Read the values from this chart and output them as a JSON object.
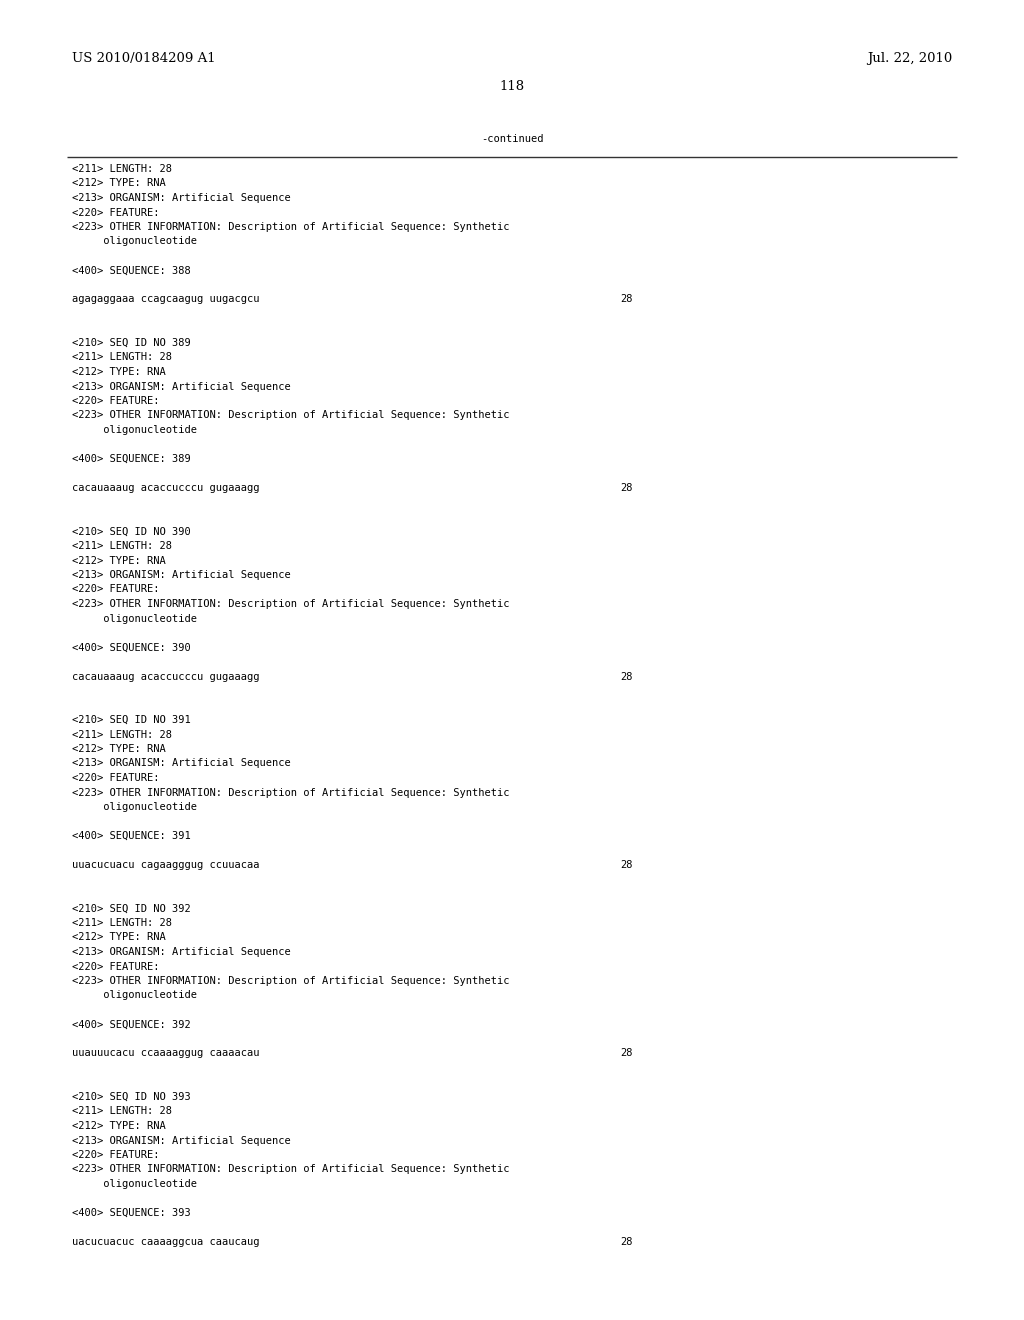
{
  "page_left": "US 2010/0184209 A1",
  "page_right": "Jul. 22, 2010",
  "page_number": "118",
  "continued_label": "-continued",
  "bg_color": "#ffffff",
  "text_color": "#000000",
  "font_size_header": 9.5,
  "font_size_body": 7.5,
  "content": [
    {
      "text": "<211> LENGTH: 28",
      "type": "meta"
    },
    {
      "text": "<212> TYPE: RNA",
      "type": "meta"
    },
    {
      "text": "<213> ORGANISM: Artificial Sequence",
      "type": "meta"
    },
    {
      "text": "<220> FEATURE:",
      "type": "meta"
    },
    {
      "text": "<223> OTHER INFORMATION: Description of Artificial Sequence: Synthetic",
      "type": "meta"
    },
    {
      "text": "     oligonucleotide",
      "type": "meta"
    },
    {
      "text": "",
      "type": "blank"
    },
    {
      "text": "<400> SEQUENCE: 388",
      "type": "meta"
    },
    {
      "text": "",
      "type": "blank"
    },
    {
      "text": "agagaggaaa ccagcaagug uugacgcu",
      "type": "seq",
      "num": "28"
    },
    {
      "text": "",
      "type": "blank"
    },
    {
      "text": "",
      "type": "blank"
    },
    {
      "text": "<210> SEQ ID NO 389",
      "type": "meta"
    },
    {
      "text": "<211> LENGTH: 28",
      "type": "meta"
    },
    {
      "text": "<212> TYPE: RNA",
      "type": "meta"
    },
    {
      "text": "<213> ORGANISM: Artificial Sequence",
      "type": "meta"
    },
    {
      "text": "<220> FEATURE:",
      "type": "meta"
    },
    {
      "text": "<223> OTHER INFORMATION: Description of Artificial Sequence: Synthetic",
      "type": "meta"
    },
    {
      "text": "     oligonucleotide",
      "type": "meta"
    },
    {
      "text": "",
      "type": "blank"
    },
    {
      "text": "<400> SEQUENCE: 389",
      "type": "meta"
    },
    {
      "text": "",
      "type": "blank"
    },
    {
      "text": "cacauaaaug acaccucccu gugaaagg",
      "type": "seq",
      "num": "28"
    },
    {
      "text": "",
      "type": "blank"
    },
    {
      "text": "",
      "type": "blank"
    },
    {
      "text": "<210> SEQ ID NO 390",
      "type": "meta"
    },
    {
      "text": "<211> LENGTH: 28",
      "type": "meta"
    },
    {
      "text": "<212> TYPE: RNA",
      "type": "meta"
    },
    {
      "text": "<213> ORGANISM: Artificial Sequence",
      "type": "meta"
    },
    {
      "text": "<220> FEATURE:",
      "type": "meta"
    },
    {
      "text": "<223> OTHER INFORMATION: Description of Artificial Sequence: Synthetic",
      "type": "meta"
    },
    {
      "text": "     oligonucleotide",
      "type": "meta"
    },
    {
      "text": "",
      "type": "blank"
    },
    {
      "text": "<400> SEQUENCE: 390",
      "type": "meta"
    },
    {
      "text": "",
      "type": "blank"
    },
    {
      "text": "cacauaaaug acaccucccu gugaaagg",
      "type": "seq",
      "num": "28"
    },
    {
      "text": "",
      "type": "blank"
    },
    {
      "text": "",
      "type": "blank"
    },
    {
      "text": "<210> SEQ ID NO 391",
      "type": "meta"
    },
    {
      "text": "<211> LENGTH: 28",
      "type": "meta"
    },
    {
      "text": "<212> TYPE: RNA",
      "type": "meta"
    },
    {
      "text": "<213> ORGANISM: Artificial Sequence",
      "type": "meta"
    },
    {
      "text": "<220> FEATURE:",
      "type": "meta"
    },
    {
      "text": "<223> OTHER INFORMATION: Description of Artificial Sequence: Synthetic",
      "type": "meta"
    },
    {
      "text": "     oligonucleotide",
      "type": "meta"
    },
    {
      "text": "",
      "type": "blank"
    },
    {
      "text": "<400> SEQUENCE: 391",
      "type": "meta"
    },
    {
      "text": "",
      "type": "blank"
    },
    {
      "text": "uuacucuacu cagaagggug ccuuacaa",
      "type": "seq",
      "num": "28"
    },
    {
      "text": "",
      "type": "blank"
    },
    {
      "text": "",
      "type": "blank"
    },
    {
      "text": "<210> SEQ ID NO 392",
      "type": "meta"
    },
    {
      "text": "<211> LENGTH: 28",
      "type": "meta"
    },
    {
      "text": "<212> TYPE: RNA",
      "type": "meta"
    },
    {
      "text": "<213> ORGANISM: Artificial Sequence",
      "type": "meta"
    },
    {
      "text": "<220> FEATURE:",
      "type": "meta"
    },
    {
      "text": "<223> OTHER INFORMATION: Description of Artificial Sequence: Synthetic",
      "type": "meta"
    },
    {
      "text": "     oligonucleotide",
      "type": "meta"
    },
    {
      "text": "",
      "type": "blank"
    },
    {
      "text": "<400> SEQUENCE: 392",
      "type": "meta"
    },
    {
      "text": "",
      "type": "blank"
    },
    {
      "text": "uuauuucacu ccaaaaggug caaaacau",
      "type": "seq",
      "num": "28"
    },
    {
      "text": "",
      "type": "blank"
    },
    {
      "text": "",
      "type": "blank"
    },
    {
      "text": "<210> SEQ ID NO 393",
      "type": "meta"
    },
    {
      "text": "<211> LENGTH: 28",
      "type": "meta"
    },
    {
      "text": "<212> TYPE: RNA",
      "type": "meta"
    },
    {
      "text": "<213> ORGANISM: Artificial Sequence",
      "type": "meta"
    },
    {
      "text": "<220> FEATURE:",
      "type": "meta"
    },
    {
      "text": "<223> OTHER INFORMATION: Description of Artificial Sequence: Synthetic",
      "type": "meta"
    },
    {
      "text": "     oligonucleotide",
      "type": "meta"
    },
    {
      "text": "",
      "type": "blank"
    },
    {
      "text": "<400> SEQUENCE: 393",
      "type": "meta"
    },
    {
      "text": "",
      "type": "blank"
    },
    {
      "text": "uacucuacuc caaaaggcua caaucaug",
      "type": "seq",
      "num": "28"
    }
  ]
}
